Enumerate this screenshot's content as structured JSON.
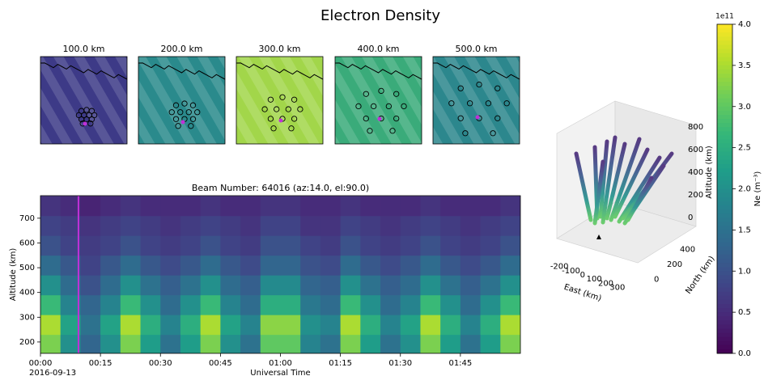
{
  "title": "Electron Density",
  "chart_data": [
    {
      "type": "map",
      "panels": [
        {
          "title": "100.0 km",
          "color": "#3d3a87"
        },
        {
          "title": "200.0 km",
          "color": "#2a8a8c"
        },
        {
          "title": "300.0 km",
          "color": "#a2d64a"
        },
        {
          "title": "400.0 km",
          "color": "#3aab7a"
        },
        {
          "title": "500.0 km",
          "color": "#2c878d"
        }
      ]
    },
    {
      "type": "heatmap",
      "title": "Beam Number: 64016 (az:14.0, el:90.0)",
      "xlabel": "Universal Time",
      "ylabel": "Altitude (km)",
      "date": "2016-09-13",
      "colormap": "viridis",
      "zlim": [
        0,
        4
      ],
      "xlim": [
        0,
        120
      ],
      "ylim": [
        154,
        791
      ],
      "xticks": [
        {
          "value": 0,
          "label": "00:00"
        },
        {
          "value": 15,
          "label": "00:15"
        },
        {
          "value": 30,
          "label": "00:30"
        },
        {
          "value": 45,
          "label": "00:45"
        },
        {
          "value": 60,
          "label": "01:00"
        },
        {
          "value": 75,
          "label": "01:15"
        },
        {
          "value": 90,
          "label": "01:30"
        },
        {
          "value": 105,
          "label": "01:45"
        }
      ],
      "yticks": [
        200,
        300,
        400,
        500,
        600,
        700
      ],
      "marker_x": 9.5,
      "marker_color": "#c030d8",
      "x_bins": [
        0,
        5,
        10,
        15,
        20,
        25,
        30,
        35,
        40,
        45,
        50,
        55,
        60,
        65,
        70,
        75,
        80,
        85,
        90,
        95,
        100,
        105,
        110,
        115,
        120
      ],
      "y_bins": [
        150,
        230,
        310,
        390,
        470,
        550,
        630,
        710,
        790
      ],
      "z": [
        [
          3.2,
          2.0,
          1.3,
          2.0,
          3.2,
          2.2,
          1.5,
          2.2,
          3.2,
          2.0,
          1.5,
          3.0,
          3.0,
          1.8,
          1.5,
          3.2,
          2.2,
          1.5,
          2.0,
          3.2,
          2.2,
          1.5,
          2.2,
          3.2
        ],
        [
          3.5,
          2.3,
          1.5,
          2.3,
          3.5,
          2.5,
          1.8,
          2.5,
          3.5,
          2.3,
          1.8,
          3.3,
          3.3,
          2.0,
          1.8,
          3.5,
          2.5,
          1.8,
          2.3,
          3.5,
          2.5,
          1.8,
          2.5,
          3.5
        ],
        [
          2.7,
          1.8,
          1.3,
          1.8,
          2.7,
          2.0,
          1.4,
          2.0,
          2.7,
          1.8,
          1.4,
          2.5,
          2.5,
          1.6,
          1.4,
          2.7,
          2.0,
          1.4,
          1.8,
          2.7,
          2.0,
          1.4,
          2.0,
          2.7
        ],
        [
          2.0,
          1.4,
          1.0,
          1.4,
          2.0,
          1.5,
          1.2,
          1.5,
          2.0,
          1.4,
          1.2,
          1.9,
          1.9,
          1.3,
          1.2,
          2.0,
          1.5,
          1.2,
          1.4,
          2.0,
          1.5,
          1.2,
          1.5,
          2.0
        ],
        [
          1.4,
          1.1,
          0.8,
          1.1,
          1.4,
          1.1,
          0.9,
          1.1,
          1.4,
          1.1,
          0.9,
          1.3,
          1.3,
          1.0,
          0.9,
          1.4,
          1.1,
          0.9,
          1.1,
          1.4,
          1.1,
          0.9,
          1.1,
          1.4
        ],
        [
          1.0,
          0.8,
          0.7,
          0.8,
          1.0,
          0.8,
          0.7,
          0.8,
          1.0,
          0.8,
          0.7,
          1.0,
          1.0,
          0.8,
          0.7,
          1.0,
          0.8,
          0.7,
          0.8,
          1.0,
          0.8,
          0.7,
          0.8,
          1.0
        ],
        [
          0.8,
          0.7,
          0.6,
          0.7,
          0.8,
          0.7,
          0.6,
          0.7,
          0.8,
          0.7,
          0.6,
          0.8,
          0.8,
          0.6,
          0.6,
          0.8,
          0.7,
          0.6,
          0.7,
          0.8,
          0.7,
          0.6,
          0.7,
          0.8
        ],
        [
          0.6,
          0.5,
          0.4,
          0.5,
          0.6,
          0.5,
          0.5,
          0.5,
          0.6,
          0.5,
          0.5,
          0.6,
          0.6,
          0.5,
          0.5,
          0.6,
          0.5,
          0.5,
          0.5,
          0.6,
          0.5,
          0.5,
          0.5,
          0.6
        ]
      ]
    },
    {
      "type": "scatter3d",
      "xlabel": "East (km)",
      "ylabel": "North (km)",
      "zlabel": "Altitude (km)",
      "xlim": [
        -250,
        350
      ],
      "xticks": [
        -200,
        -100,
        0,
        100,
        200,
        300
      ],
      "ylim": [
        -100,
        500
      ],
      "yticks": [
        0,
        200,
        400
      ],
      "zlim": [
        0,
        800
      ],
      "zticks": [
        0,
        200,
        400,
        600,
        800
      ]
    },
    {
      "type": "colorbar",
      "label": "Ne (m⁻³)",
      "multiplier": "1e11",
      "colormap": "viridis",
      "ylim": [
        0,
        4
      ],
      "yticks": [
        {
          "value": 0,
          "label": "0.0"
        },
        {
          "value": 0.5,
          "label": "0.5"
        },
        {
          "value": 1,
          "label": "1.0"
        },
        {
          "value": 1.5,
          "label": "1.5"
        },
        {
          "value": 2,
          "label": "2.0"
        },
        {
          "value": 2.5,
          "label": "2.5"
        },
        {
          "value": 3,
          "label": "3.0"
        },
        {
          "value": 3.5,
          "label": "3.5"
        },
        {
          "value": 4,
          "label": "4.0"
        }
      ]
    }
  ]
}
